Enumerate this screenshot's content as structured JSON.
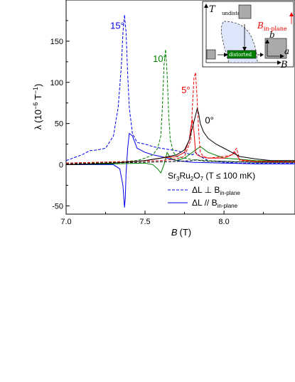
{
  "chart_data": {
    "type": "line",
    "xlabel": {
      "symbol": "B",
      "unit": "(T)"
    },
    "ylabel": {
      "symbol": "λ",
      "unit": "(10",
      "exp": "−6",
      "unit2": " T",
      "exp2": "−1",
      "close": ")"
    },
    "xlim": [
      7.0,
      8.45
    ],
    "ylim": [
      -60,
      200
    ],
    "xticks": [
      7.0,
      7.5,
      8.0
    ],
    "xtick_labels": [
      "7.0",
      "7.5",
      "8.0"
    ],
    "yticks": [
      -50,
      0,
      50,
      100,
      150
    ],
    "ytick_labels": [
      "-50",
      "0",
      "50",
      "100",
      "150"
    ],
    "legend": {
      "placement": "lower-right",
      "title_main": "Sr",
      "title_sub1": "3",
      "title_mid": "Ru",
      "title_sub2": "2",
      "title_mid2": "O",
      "title_sub3": "7",
      "title_cond": " (T ≤ 100 mK)",
      "entries": [
        {
          "style": "dashed",
          "color": "#0000ee",
          "label": "ΔL ⊥ B",
          "label_sub": "in-plane"
        },
        {
          "style": "solid",
          "color": "#0000ee",
          "label": "ΔL // B",
          "label_sub": "in-plane"
        }
      ]
    },
    "series": [
      {
        "angle": "15°",
        "color": "#0000ee",
        "style": "dashed",
        "x": [
          7.0,
          7.1,
          7.15,
          7.2,
          7.25,
          7.3,
          7.33,
          7.35,
          7.36,
          7.37,
          7.38,
          7.39,
          7.4,
          7.42,
          7.45,
          7.5,
          7.55,
          7.6,
          7.7,
          7.8,
          7.82,
          7.85,
          7.9,
          8.0,
          8.1,
          8.2,
          8.3,
          8.45
        ],
        "y": [
          5,
          12,
          17,
          18,
          20,
          35,
          70,
          120,
          160,
          182,
          160,
          110,
          70,
          38,
          27,
          25,
          22,
          20,
          17,
          12,
          15,
          10,
          5,
          3,
          2,
          2,
          2,
          2
        ]
      },
      {
        "angle": "15°",
        "color": "#0000ee",
        "style": "solid",
        "x": [
          7.0,
          7.2,
          7.3,
          7.34,
          7.36,
          7.37,
          7.375,
          7.38,
          7.39,
          7.4,
          7.42,
          7.45,
          7.5,
          7.55,
          7.6,
          7.7,
          7.8,
          8.0,
          8.2,
          8.45
        ],
        "y": [
          0,
          0,
          0,
          -5,
          -25,
          -52,
          -40,
          -10,
          20,
          38,
          35,
          20,
          15,
          12,
          10,
          5,
          3,
          2,
          1,
          1
        ]
      },
      {
        "angle": "10°",
        "color": "#008000",
        "style": "dashed",
        "x": [
          7.0,
          7.3,
          7.45,
          7.5,
          7.55,
          7.58,
          7.6,
          7.61,
          7.62,
          7.63,
          7.64,
          7.65,
          7.66,
          7.68,
          7.7,
          7.8,
          8.0,
          8.2,
          8.45
        ],
        "y": [
          2,
          3,
          5,
          8,
          12,
          20,
          35,
          70,
          120,
          140,
          110,
          60,
          30,
          15,
          10,
          6,
          4,
          3,
          3
        ]
      },
      {
        "angle": "10°",
        "color": "#008000",
        "style": "solid",
        "x": [
          7.0,
          7.3,
          7.5,
          7.55,
          7.58,
          7.6,
          7.62,
          7.64,
          7.66,
          7.7,
          7.75,
          7.8,
          7.85,
          7.9,
          8.0,
          8.2,
          8.45
        ],
        "y": [
          0,
          1,
          2,
          0,
          -5,
          -10,
          0,
          15,
          8,
          5,
          8,
          15,
          22,
          15,
          8,
          5,
          4
        ]
      },
      {
        "angle": "5°",
        "color": "#ee0000",
        "style": "dashed",
        "x": [
          7.0,
          7.4,
          7.6,
          7.7,
          7.75,
          7.79,
          7.8,
          7.81,
          7.82,
          7.83,
          7.84,
          7.85,
          7.87,
          7.9,
          8.0,
          8.05,
          8.08,
          8.1,
          8.2,
          8.45
        ],
        "y": [
          2,
          4,
          5,
          7,
          10,
          30,
          70,
          105,
          112,
          80,
          40,
          15,
          10,
          8,
          10,
          12,
          20,
          5,
          4,
          4
        ]
      },
      {
        "angle": "5°",
        "color": "#ee0000",
        "style": "solid",
        "x": [
          7.0,
          7.3,
          7.5,
          7.6,
          7.7,
          7.75,
          7.78,
          7.79,
          7.8,
          7.81,
          7.82,
          7.83,
          7.85,
          7.9,
          8.0,
          8.05,
          8.07,
          8.1,
          8.2,
          8.45
        ],
        "y": [
          0,
          2,
          5,
          8,
          10,
          15,
          30,
          45,
          55,
          40,
          15,
          12,
          10,
          8,
          8,
          12,
          15,
          6,
          4,
          3
        ]
      },
      {
        "angle": "0°",
        "color": "#000000",
        "style": "solid",
        "x": [
          7.0,
          7.3,
          7.5,
          7.6,
          7.7,
          7.75,
          7.78,
          7.8,
          7.82,
          7.83,
          7.84,
          7.85,
          7.87,
          7.9,
          7.95,
          8.0,
          8.05,
          8.1,
          8.2,
          8.3,
          8.45
        ],
        "y": [
          0,
          2,
          5,
          8,
          12,
          18,
          30,
          45,
          60,
          68,
          62,
          50,
          40,
          32,
          25,
          20,
          15,
          10,
          7,
          5,
          5
        ]
      },
      {
        "angle": "0°",
        "color": "#000000",
        "style": "dashed",
        "x": [
          7.0,
          7.5,
          7.7,
          7.8,
          7.83,
          7.85,
          7.9,
          8.0,
          8.2,
          8.45
        ],
        "y": [
          1,
          3,
          4,
          5,
          6,
          5,
          4,
          4,
          3,
          3
        ]
      }
    ],
    "angle_labels": [
      {
        "text": "15°",
        "color": "#0000ee",
        "x": 7.28,
        "y": 165
      },
      {
        "text": "10°",
        "color": "#008000",
        "x": 7.55,
        "y": 125
      },
      {
        "text": "5°",
        "color": "#ee0000",
        "x": 7.73,
        "y": 87
      },
      {
        "text": "0°",
        "color": "#000000",
        "x": 7.88,
        "y": 50
      }
    ],
    "inset": {
      "t_axis": "T",
      "b_axis": "B",
      "undistorted": "undistorted",
      "distorted": "distorted",
      "b_in_plane": "B",
      "b_in_plane_sub": "in-plane",
      "crystal_b": "b",
      "crystal_a": "a"
    }
  }
}
